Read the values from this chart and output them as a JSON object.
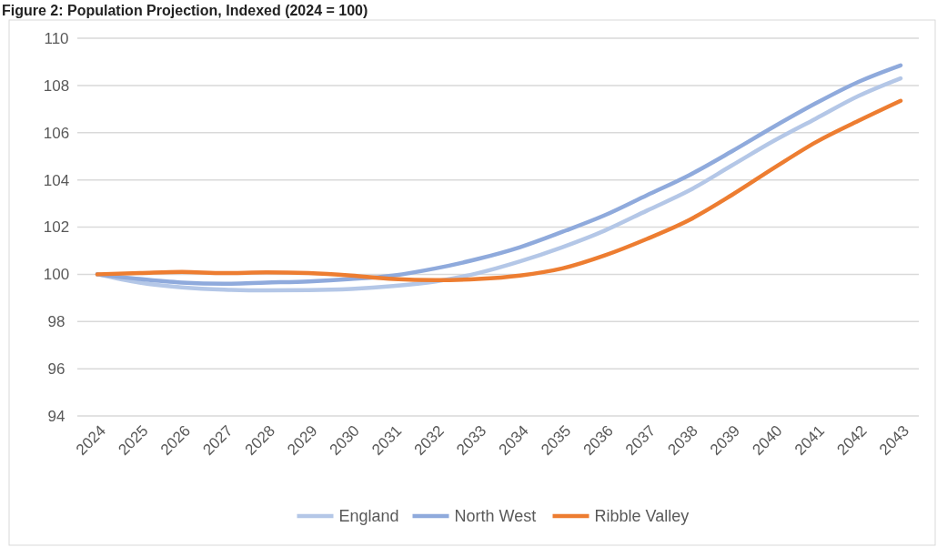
{
  "chart_data": {
    "type": "line",
    "title": "Figure 2: Population Projection, Indexed (2024 = 100)",
    "categories": [
      "2024",
      "2025",
      "2026",
      "2027",
      "2028",
      "2029",
      "2030",
      "2031",
      "2032",
      "2033",
      "2034",
      "2035",
      "2036",
      "2037",
      "2038",
      "2039",
      "2040",
      "2041",
      "2042",
      "2043"
    ],
    "series": [
      {
        "name": "England",
        "color": "#b4c7e7",
        "values": [
          100,
          99.65,
          99.45,
          99.35,
          99.32,
          99.33,
          99.38,
          99.5,
          99.7,
          100.05,
          100.55,
          101.15,
          101.85,
          102.7,
          103.55,
          104.6,
          105.65,
          106.6,
          107.55,
          108.3
        ]
      },
      {
        "name": "North West",
        "color": "#8faadc",
        "values": [
          100,
          99.8,
          99.65,
          99.6,
          99.65,
          99.7,
          99.8,
          99.95,
          100.25,
          100.65,
          101.15,
          101.8,
          102.5,
          103.35,
          104.2,
          105.2,
          106.25,
          107.25,
          108.15,
          108.85
        ]
      },
      {
        "name": "Ribble Valley",
        "color": "#ed7d31",
        "values": [
          100,
          100.05,
          100.1,
          100.05,
          100.08,
          100.05,
          99.95,
          99.8,
          99.75,
          99.8,
          99.95,
          100.25,
          100.8,
          101.5,
          102.3,
          103.35,
          104.5,
          105.6,
          106.5,
          107.35
        ]
      }
    ],
    "ylim": [
      94,
      110
    ],
    "yticks": [
      94,
      96,
      98,
      100,
      102,
      104,
      106,
      108,
      110
    ],
    "grid": "y",
    "legend": "bottom",
    "marker": "none",
    "line_style": "solid"
  }
}
